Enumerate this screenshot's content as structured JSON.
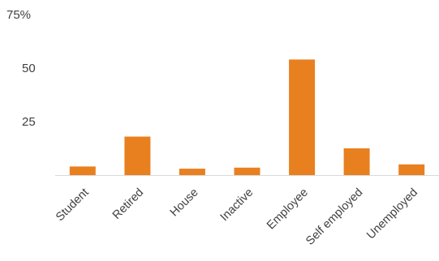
{
  "chart_data": {
    "type": "bar",
    "categories": [
      "Student",
      "Retired",
      "House",
      "Inactive",
      "Employee",
      "Self employed",
      "Unemployed"
    ],
    "values": [
      4,
      18,
      3,
      3.5,
      54,
      12.5,
      5
    ],
    "ylim": [
      0,
      75
    ],
    "yticks": [
      {
        "value": 75,
        "label": "75%"
      },
      {
        "value": 50,
        "label": "50"
      },
      {
        "value": 25,
        "label": "25"
      }
    ],
    "grid": false,
    "bar_color": "#E8801F",
    "axis_color": "#D9D9D9"
  }
}
